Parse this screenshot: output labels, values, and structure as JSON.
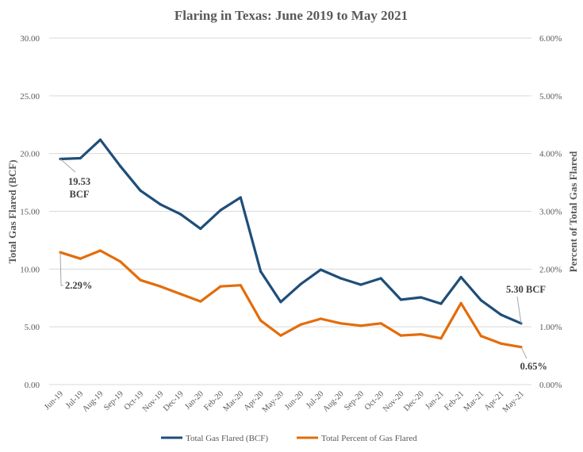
{
  "chart_data": {
    "type": "line",
    "title": "Flaring in Texas:  June 2019 to May 2021",
    "xlabel": "",
    "ylabel": "Total Gas Flared (BCF)",
    "y2label": "Percent of Total Gas Flared",
    "ylim": [
      0,
      30
    ],
    "y2lim": [
      0,
      6
    ],
    "yticks": [
      "0.00",
      "5.00",
      "10.00",
      "15.00",
      "20.00",
      "25.00",
      "30.00"
    ],
    "y2ticks": [
      "0.00%",
      "1.00%",
      "2.00%",
      "3.00%",
      "4.00%",
      "5.00%",
      "6.00%"
    ],
    "grid": true,
    "legend_position": "bottom",
    "categories": [
      "Jun-19",
      "Jul-19",
      "Aug-19",
      "Sep-19",
      "Oct-19",
      "Nov-19",
      "Dec-19",
      "Jan-20",
      "Feb-20",
      "Mar-20",
      "Apr-20",
      "May-20",
      "Jun-20",
      "Jul-20",
      "Aug-20",
      "Sep-20",
      "Oct-20",
      "Nov-20",
      "Dec-20",
      "Jan-21",
      "Feb-21",
      "Mar-21",
      "Apr-21",
      "May-21"
    ],
    "series": [
      {
        "name": "Total Gas Flared (BCF)",
        "axis": "left",
        "color": "#1f4e79",
        "values": [
          19.53,
          19.6,
          21.2,
          18.9,
          16.8,
          15.6,
          14.75,
          13.5,
          15.1,
          16.2,
          9.8,
          7.15,
          8.7,
          9.95,
          9.2,
          8.65,
          9.2,
          7.35,
          7.55,
          7.0,
          9.3,
          7.3,
          6.05,
          5.3
        ]
      },
      {
        "name": "Total Percent of Gas Flared",
        "axis": "right",
        "color": "#e46c0a",
        "values": [
          2.29,
          2.18,
          2.32,
          2.13,
          1.81,
          1.7,
          1.57,
          1.44,
          1.7,
          1.72,
          1.11,
          0.85,
          1.04,
          1.14,
          1.06,
          1.02,
          1.06,
          0.85,
          0.87,
          0.8,
          1.41,
          0.84,
          0.71,
          0.65
        ]
      }
    ],
    "annotations": [
      {
        "series": 0,
        "index": 0,
        "text": [
          "19.53",
          "BCF"
        ]
      },
      {
        "series": 1,
        "index": 0,
        "text": [
          "2.29%"
        ]
      },
      {
        "series": 0,
        "index": 23,
        "text": [
          "5.30 BCF"
        ]
      },
      {
        "series": 1,
        "index": 23,
        "text": [
          "0.65%"
        ]
      }
    ]
  }
}
